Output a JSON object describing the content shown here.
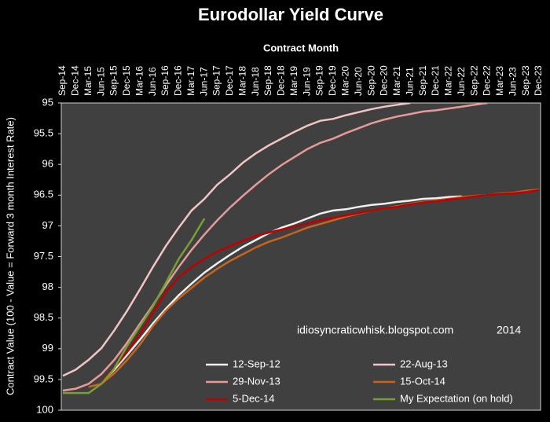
{
  "chart_data": {
    "type": "line",
    "title": "Eurodollar Yield Curve",
    "x_label": "Contract Month",
    "y_label": "Contract Value (100 - Value = Forward 3 month Interest Rate)",
    "annotations": [
      "idiosyncraticwhisk.blogspot.com",
      "2014"
    ],
    "categories": [
      "Sep-14",
      "Dec-14",
      "Mar-15",
      "Jun-15",
      "Sep-15",
      "Dec-15",
      "Mar-16",
      "Jun-16",
      "Sep-16",
      "Dec-16",
      "Mar-17",
      "Jun-17",
      "Sep-17",
      "Dec-17",
      "Mar-18",
      "Jun-18",
      "Sep-18",
      "Dec-18",
      "Mar-19",
      "Jun-19",
      "Sep-19",
      "Dec-19",
      "Mar-20",
      "Jun-20",
      "Sep-20",
      "Dec-20",
      "Mar-21",
      "Jun-21",
      "Sep-21",
      "Dec-21",
      "Mar-22",
      "Jun-22",
      "Sep-22",
      "Dec-22",
      "Mar-23",
      "Jun-23",
      "Sep-23",
      "Dec-23"
    ],
    "ylim": [
      95,
      100
    ],
    "y_inverted": true,
    "yticks": [
      95,
      95.5,
      96,
      96.5,
      97,
      97.5,
      98,
      98.5,
      99,
      99.5,
      100
    ],
    "grid": false,
    "series": [
      {
        "name": "12-Sep-12",
        "color": "#f0f0f0",
        "values": [
          null,
          null,
          null,
          99.55,
          99.34,
          99.1,
          98.85,
          98.59,
          98.35,
          98.13,
          97.94,
          97.76,
          97.61,
          97.47,
          97.34,
          97.23,
          97.12,
          97.03,
          96.96,
          96.88,
          96.8,
          96.75,
          96.73,
          96.69,
          96.66,
          96.64,
          96.61,
          96.59,
          96.56,
          96.55,
          96.53,
          96.52,
          null,
          null,
          null,
          null,
          null,
          null
        ]
      },
      {
        "name": "22-Aug-13",
        "color": "#f2c4c4",
        "values": [
          99.44,
          99.34,
          99.18,
          98.99,
          98.7,
          98.38,
          98.03,
          97.67,
          97.33,
          97.03,
          96.75,
          96.56,
          96.33,
          96.16,
          95.97,
          95.82,
          95.69,
          95.58,
          95.47,
          95.37,
          95.29,
          95.26,
          95.2,
          95.15,
          95.1,
          95.06,
          95.03,
          95.0,
          null,
          null,
          null,
          null,
          null,
          null,
          null,
          null,
          null,
          null
        ]
      },
      {
        "name": "29-Nov-13",
        "color": "#e89a9a",
        "values": [
          99.68,
          99.65,
          99.57,
          99.41,
          99.18,
          98.9,
          98.59,
          98.29,
          97.97,
          97.67,
          97.39,
          97.14,
          96.91,
          96.7,
          96.51,
          96.33,
          96.16,
          96.01,
          95.88,
          95.75,
          95.65,
          95.58,
          95.49,
          95.41,
          95.33,
          95.27,
          95.22,
          95.18,
          95.14,
          95.12,
          95.09,
          95.06,
          95.03,
          95.0,
          null,
          null,
          null,
          null
        ]
      },
      {
        "name": "15-Oct-14",
        "color": "#c8641e",
        "values": [
          null,
          null,
          99.62,
          99.57,
          99.4,
          99.18,
          98.93,
          98.63,
          98.38,
          98.18,
          98.01,
          97.84,
          97.7,
          97.57,
          97.46,
          97.35,
          97.26,
          97.19,
          97.11,
          97.03,
          96.97,
          96.91,
          96.85,
          96.8,
          96.75,
          96.71,
          96.68,
          96.64,
          96.61,
          96.59,
          96.56,
          96.53,
          96.51,
          96.5,
          96.47,
          96.46,
          96.43,
          96.41
        ]
      },
      {
        "name": "5-Dec-14",
        "color": "#c00000",
        "values": [
          null,
          null,
          null,
          99.55,
          99.31,
          99.05,
          98.76,
          98.41,
          98.08,
          97.84,
          97.67,
          97.54,
          97.42,
          97.33,
          97.24,
          97.16,
          97.11,
          97.06,
          97.01,
          96.96,
          96.91,
          96.87,
          96.83,
          96.79,
          96.75,
          96.71,
          96.69,
          96.65,
          96.62,
          96.6,
          96.57,
          96.55,
          96.52,
          96.5,
          96.48,
          96.47,
          96.45,
          96.42
        ]
      },
      {
        "name": "My Expectation (on hold)",
        "color": "#77a033",
        "values": [
          99.72,
          99.72,
          99.72,
          99.57,
          99.32,
          98.95,
          98.63,
          98.31,
          97.93,
          97.54,
          97.23,
          96.88,
          null,
          null,
          null,
          null,
          null,
          null,
          null,
          null,
          null,
          null,
          null,
          null,
          null,
          null,
          null,
          null,
          null,
          null,
          null,
          null,
          null,
          null,
          null,
          null,
          null,
          null
        ]
      }
    ]
  }
}
